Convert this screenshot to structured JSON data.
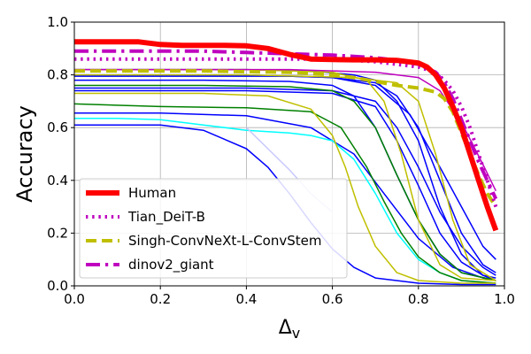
{
  "chart_data": {
    "type": "line",
    "xlabel": "Δ",
    "xlabel_sub": "v",
    "ylabel": "Accuracy",
    "xlim": [
      0,
      1
    ],
    "ylim": [
      0,
      1
    ],
    "xticks": [
      "0.0",
      "0.2",
      "0.4",
      "0.6",
      "0.8",
      "1.0"
    ],
    "yticks": [
      "0.0",
      "0.2",
      "0.4",
      "0.6",
      "0.8",
      "1.0"
    ],
    "grid": true,
    "legend_position": "lower-left",
    "legend": [
      {
        "label": "Human",
        "color": "#ff0000",
        "style": "solid"
      },
      {
        "label": "Tian_DeiT-B",
        "color": "#bf00bf",
        "style": "dotted"
      },
      {
        "label": "Singh-ConvNeXt-L-ConvStem",
        "color": "#bfbf00",
        "style": "dashed"
      },
      {
        "label": "dinov2_giant",
        "color": "#bf00bf",
        "style": "dashdot"
      }
    ],
    "series": [
      {
        "name": "Human",
        "color": "#ff0000",
        "style": "solid",
        "width": 6,
        "x": [
          0,
          0.05,
          0.1,
          0.15,
          0.2,
          0.25,
          0.3,
          0.35,
          0.4,
          0.45,
          0.5,
          0.55,
          0.6,
          0.65,
          0.7,
          0.75,
          0.8,
          0.82,
          0.84,
          0.86,
          0.88,
          0.9,
          0.92,
          0.94,
          0.96,
          0.98
        ],
        "y": [
          0.925,
          0.925,
          0.925,
          0.925,
          0.915,
          0.912,
          0.912,
          0.912,
          0.91,
          0.9,
          0.878,
          0.86,
          0.858,
          0.857,
          0.857,
          0.855,
          0.845,
          0.83,
          0.8,
          0.75,
          0.68,
          0.6,
          0.5,
          0.4,
          0.3,
          0.21
        ]
      },
      {
        "name": "Tian_DeiT-B",
        "color": "#bf00bf",
        "style": "dotted",
        "width": 4,
        "x": [
          0,
          0.1,
          0.2,
          0.3,
          0.4,
          0.5,
          0.6,
          0.7,
          0.75,
          0.8,
          0.84,
          0.86,
          0.88,
          0.9,
          0.92,
          0.94,
          0.96,
          0.98
        ],
        "y": [
          0.86,
          0.86,
          0.86,
          0.86,
          0.86,
          0.86,
          0.86,
          0.85,
          0.84,
          0.83,
          0.81,
          0.78,
          0.74,
          0.68,
          0.6,
          0.5,
          0.4,
          0.3
        ]
      },
      {
        "name": "Singh-ConvNeXt-L-ConvStem",
        "color": "#bfbf00",
        "style": "dashed",
        "width": 4,
        "x": [
          0,
          0.1,
          0.2,
          0.3,
          0.4,
          0.5,
          0.6,
          0.65,
          0.7,
          0.75,
          0.8,
          0.84,
          0.86,
          0.88,
          0.9,
          0.92,
          0.94,
          0.96,
          0.98
        ],
        "y": [
          0.815,
          0.815,
          0.815,
          0.815,
          0.812,
          0.81,
          0.8,
          0.79,
          0.775,
          0.76,
          0.75,
          0.735,
          0.71,
          0.66,
          0.58,
          0.5,
          0.42,
          0.35,
          0.3
        ]
      },
      {
        "name": "dinov2_giant",
        "color": "#bf00bf",
        "style": "dashdot",
        "width": 4,
        "x": [
          0,
          0.1,
          0.2,
          0.3,
          0.4,
          0.5,
          0.6,
          0.7,
          0.75,
          0.8,
          0.84,
          0.86,
          0.88,
          0.9,
          0.92,
          0.94,
          0.96,
          0.98
        ],
        "y": [
          0.89,
          0.89,
          0.89,
          0.89,
          0.885,
          0.88,
          0.875,
          0.865,
          0.855,
          0.84,
          0.81,
          0.77,
          0.71,
          0.63,
          0.55,
          0.47,
          0.4,
          0.33
        ]
      },
      {
        "color": "#0000ff",
        "style": "solid",
        "width": 1.5,
        "x": [
          0,
          0.3,
          0.5,
          0.6,
          0.7,
          0.75,
          0.8,
          0.85,
          0.9,
          0.95,
          0.98
        ],
        "y": [
          0.795,
          0.795,
          0.795,
          0.79,
          0.77,
          0.72,
          0.6,
          0.4,
          0.2,
          0.08,
          0.05
        ]
      },
      {
        "color": "#0000ff",
        "style": "solid",
        "width": 1.5,
        "x": [
          0,
          0.3,
          0.5,
          0.6,
          0.65,
          0.7,
          0.75,
          0.8,
          0.85,
          0.9,
          0.98
        ],
        "y": [
          0.78,
          0.78,
          0.775,
          0.76,
          0.72,
          0.6,
          0.42,
          0.25,
          0.12,
          0.05,
          0.02
        ]
      },
      {
        "color": "#0000ff",
        "style": "solid",
        "width": 1.5,
        "x": [
          0,
          0.4,
          0.55,
          0.65,
          0.7,
          0.75,
          0.8,
          0.85,
          0.9,
          0.95,
          0.98
        ],
        "y": [
          0.82,
          0.82,
          0.815,
          0.8,
          0.78,
          0.7,
          0.55,
          0.3,
          0.12,
          0.04,
          0.02
        ]
      },
      {
        "color": "#0000ff",
        "style": "solid",
        "width": 1.5,
        "x": [
          0,
          0.4,
          0.6,
          0.7,
          0.75,
          0.8,
          0.85,
          0.9,
          0.95,
          0.98
        ],
        "y": [
          0.75,
          0.75,
          0.74,
          0.7,
          0.6,
          0.45,
          0.28,
          0.15,
          0.07,
          0.04
        ]
      },
      {
        "color": "#0000ff",
        "style": "solid",
        "width": 1.5,
        "x": [
          0,
          0.2,
          0.4,
          0.55,
          0.65,
          0.72,
          0.8,
          0.88,
          0.95,
          0.98
        ],
        "y": [
          0.655,
          0.655,
          0.645,
          0.6,
          0.5,
          0.35,
          0.18,
          0.07,
          0.03,
          0.02
        ]
      },
      {
        "color": "#0000ff",
        "style": "solid",
        "width": 1.5,
        "x": [
          0,
          0.2,
          0.3,
          0.4,
          0.45,
          0.5,
          0.55,
          0.6,
          0.65,
          0.7,
          0.8,
          0.9,
          0.98
        ],
        "y": [
          0.61,
          0.61,
          0.59,
          0.52,
          0.45,
          0.35,
          0.24,
          0.14,
          0.07,
          0.03,
          0.01,
          0.005,
          0.005
        ]
      },
      {
        "color": "#0000ff",
        "style": "solid",
        "width": 1.5,
        "x": [
          0,
          0.4,
          0.6,
          0.7,
          0.78,
          0.85,
          0.9,
          0.95,
          0.98
        ],
        "y": [
          0.8,
          0.8,
          0.79,
          0.76,
          0.65,
          0.45,
          0.3,
          0.15,
          0.1
        ]
      },
      {
        "color": "#0000ff",
        "style": "solid",
        "width": 1.5,
        "x": [
          0,
          0.4,
          0.6,
          0.7,
          0.75,
          0.8,
          0.85,
          0.9,
          0.95,
          0.98
        ],
        "y": [
          0.74,
          0.74,
          0.73,
          0.68,
          0.55,
          0.38,
          0.2,
          0.09,
          0.04,
          0.03
        ]
      },
      {
        "color": "#00ffff",
        "style": "solid",
        "width": 1.5,
        "x": [
          0,
          0.1,
          0.2,
          0.3,
          0.4,
          0.5,
          0.55,
          0.6,
          0.65,
          0.7,
          0.75,
          0.8,
          0.85,
          0.9,
          0.98
        ],
        "y": [
          0.635,
          0.635,
          0.63,
          0.61,
          0.59,
          0.58,
          0.57,
          0.55,
          0.48,
          0.35,
          0.2,
          0.1,
          0.05,
          0.02,
          0.01
        ]
      },
      {
        "color": "#008000",
        "style": "solid",
        "width": 1.5,
        "x": [
          0,
          0.2,
          0.4,
          0.55,
          0.62,
          0.68,
          0.72,
          0.76,
          0.8,
          0.85,
          0.9,
          0.98
        ],
        "y": [
          0.69,
          0.68,
          0.675,
          0.66,
          0.6,
          0.45,
          0.32,
          0.2,
          0.11,
          0.05,
          0.02,
          0.01
        ]
      },
      {
        "color": "#008000",
        "style": "solid",
        "width": 1.5,
        "x": [
          0,
          0.3,
          0.5,
          0.6,
          0.65,
          0.7,
          0.75,
          0.8,
          0.85,
          0.9,
          0.98
        ],
        "y": [
          0.76,
          0.76,
          0.755,
          0.74,
          0.7,
          0.6,
          0.42,
          0.25,
          0.12,
          0.05,
          0.02
        ]
      },
      {
        "color": "#bfbf00",
        "style": "solid",
        "width": 1.5,
        "x": [
          0,
          0.3,
          0.45,
          0.55,
          0.6,
          0.63,
          0.66,
          0.7,
          0.75,
          0.8,
          0.9,
          0.98
        ],
        "y": [
          0.73,
          0.73,
          0.72,
          0.67,
          0.57,
          0.45,
          0.3,
          0.15,
          0.05,
          0.02,
          0.01,
          0.01
        ]
      },
      {
        "color": "#bfbf00",
        "style": "solid",
        "width": 1.5,
        "x": [
          0,
          0.4,
          0.6,
          0.68,
          0.72,
          0.76,
          0.8,
          0.85,
          0.9,
          0.98
        ],
        "y": [
          0.82,
          0.82,
          0.81,
          0.78,
          0.7,
          0.5,
          0.25,
          0.08,
          0.03,
          0.02
        ]
      },
      {
        "color": "#bfbf00",
        "style": "solid",
        "width": 1.5,
        "x": [
          0,
          0.4,
          0.65,
          0.75,
          0.8,
          0.84,
          0.88,
          0.92,
          0.98
        ],
        "y": [
          0.8,
          0.8,
          0.79,
          0.77,
          0.7,
          0.5,
          0.25,
          0.08,
          0.02
        ]
      },
      {
        "color": "#bf00bf",
        "style": "solid",
        "width": 1.5,
        "x": [
          0,
          0.3,
          0.5,
          0.6,
          0.7,
          0.8,
          0.85,
          0.9,
          0.95,
          0.98
        ],
        "y": [
          0.82,
          0.82,
          0.82,
          0.815,
          0.81,
          0.79,
          0.74,
          0.62,
          0.46,
          0.36
        ]
      },
      {
        "color": "#c8c8ff",
        "style": "solid",
        "width": 1.5,
        "x": [
          0.4,
          0.45,
          0.5,
          0.55,
          0.6
        ],
        "y": [
          0.6,
          0.52,
          0.44,
          0.35,
          0.28
        ]
      }
    ]
  }
}
